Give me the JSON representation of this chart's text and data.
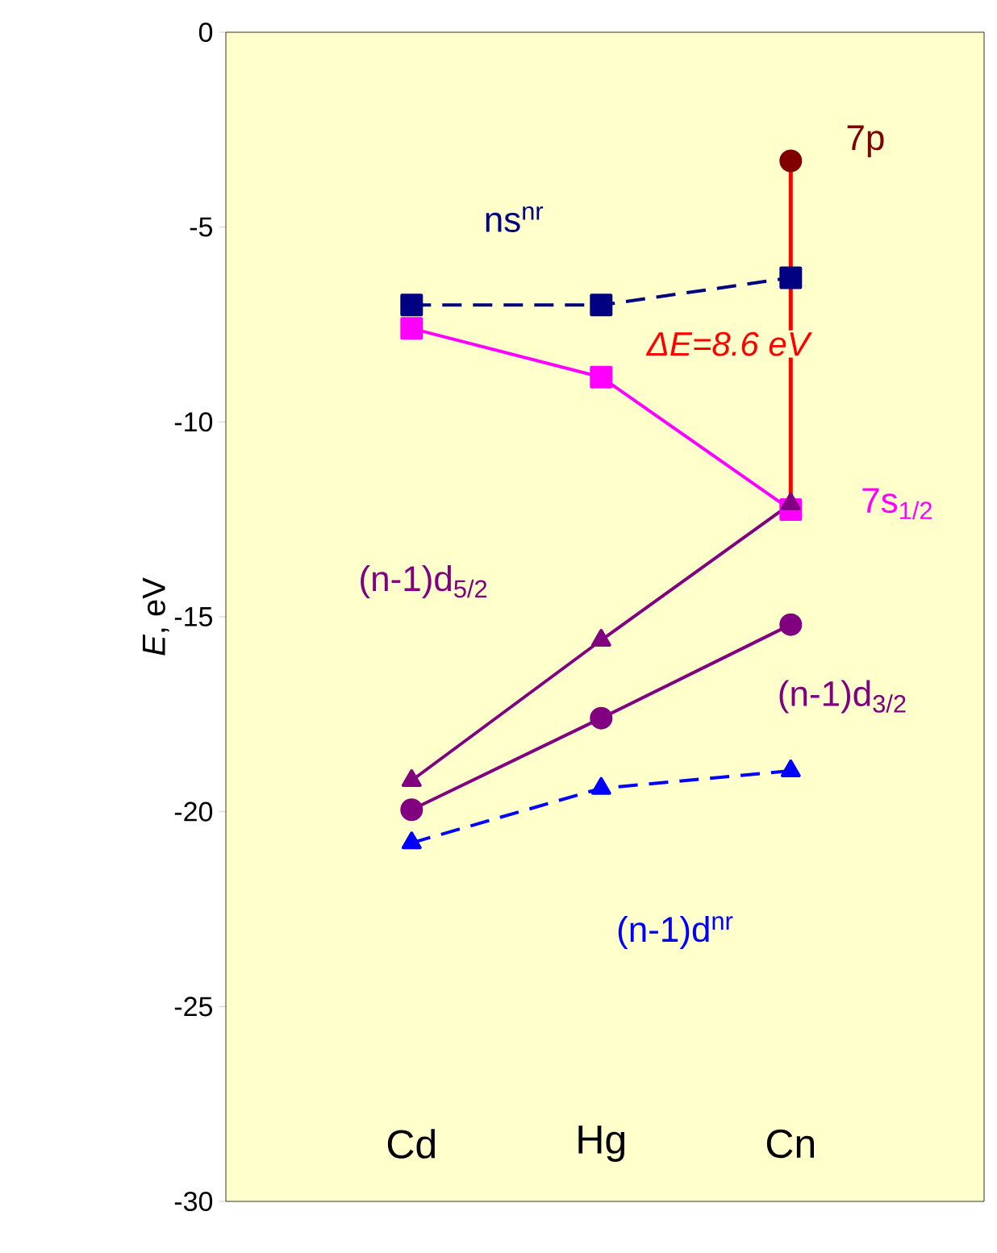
{
  "chart_data": {
    "type": "line",
    "categories": [
      "Cd",
      "Hg",
      "Cn"
    ],
    "ylabel": "*E*, eV",
    "ylim": [
      -30,
      0
    ],
    "yticks": [
      -30,
      -25,
      -20,
      -15,
      -10,
      -5,
      0
    ],
    "legend": false,
    "grid": false,
    "series": [
      {
        "name": "ns$^{nr}$",
        "color": "#000080",
        "marker": "square",
        "line_style": "dashed",
        "values": [
          -7.0,
          -7.0,
          -6.3
        ]
      },
      {
        "name": "7s$_{1/2}$",
        "color": "#ff00ff",
        "marker": "square",
        "line_style": "solid",
        "values": [
          -7.6,
          -8.85,
          -12.25
        ]
      },
      {
        "name": "(n-1)d$_{5/2}$",
        "color": "#800080",
        "marker": "triangle",
        "line_style": "solid",
        "values": [
          -19.2,
          -15.6,
          -12.1
        ]
      },
      {
        "name": "(n-1)d$_{3/2}$",
        "color": "#800080",
        "marker": "circle",
        "line_style": "solid",
        "values": [
          -19.95,
          -17.6,
          -15.2
        ]
      },
      {
        "name": "(n-1)d$^{nr}$",
        "color": "#0000ff",
        "marker": "triangle",
        "line_style": "dashed",
        "values": [
          -20.8,
          -19.4,
          -18.95
        ]
      },
      {
        "name": "7p",
        "color": "#800000",
        "marker": "circle",
        "line_style": "solid",
        "values": [
          null,
          null,
          -3.3
        ]
      }
    ],
    "annotations": [
      "ΔE=8.6 eV"
    ]
  }
}
